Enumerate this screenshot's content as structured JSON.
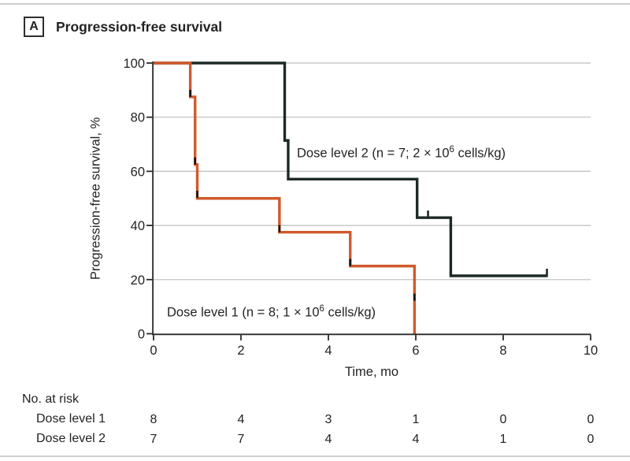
{
  "figure": {
    "panel_label": "A",
    "title": "Progression-free survival",
    "background": "#ffffff",
    "rule_color": "#cfcfcf",
    "text_color": "#232323"
  },
  "chart_data": {
    "type": "line",
    "subtype": "kaplan-meier-step",
    "title": "Progression-free survival",
    "xlabel": "Time, mo",
    "ylabel": "Progression-free survival, %",
    "xlim": [
      0,
      10
    ],
    "ylim": [
      0,
      100
    ],
    "xticks": [
      0,
      2,
      4,
      6,
      8,
      10
    ],
    "yticks": [
      0,
      20,
      40,
      60,
      80,
      100
    ],
    "grid": "horizontal-only",
    "grid_color": "#bdbdbd",
    "axis_color": "#2a2a2a",
    "event_mark_color": "#141414",
    "series": [
      {
        "name": "Dose level 2",
        "annotation": {
          "prefix": "Dose level 2 (n = 7; 2 × 10",
          "sup": "6",
          "suffix": " cells/kg)"
        },
        "color": "#1c2a26",
        "step_points": [
          [
            0,
            100
          ],
          [
            3.0,
            100
          ],
          [
            3.0,
            71.4
          ],
          [
            3.08,
            71.4
          ],
          [
            3.08,
            57.1
          ],
          [
            6.03,
            57.1
          ],
          [
            6.03,
            42.9
          ],
          [
            6.8,
            42.9
          ],
          [
            6.8,
            21.4
          ],
          [
            9.0,
            21.4
          ]
        ],
        "censor_marks": [
          [
            6.28,
            42.9
          ],
          [
            9.0,
            21.4
          ]
        ],
        "event_marks": []
      },
      {
        "name": "Dose level 1",
        "annotation": {
          "prefix": "Dose level 1 (n = 8; 1 × 10",
          "sup": "6",
          "suffix": " cells/kg)"
        },
        "color": "#d05a2b",
        "step_points": [
          [
            0,
            100
          ],
          [
            0.84,
            100
          ],
          [
            0.84,
            87.5
          ],
          [
            0.95,
            87.5
          ],
          [
            0.95,
            62.5
          ],
          [
            1.0,
            62.5
          ],
          [
            1.0,
            50
          ],
          [
            2.88,
            50
          ],
          [
            2.88,
            37.5
          ],
          [
            4.5,
            37.5
          ],
          [
            4.5,
            25
          ],
          [
            5.97,
            25
          ],
          [
            5.97,
            0
          ]
        ],
        "censor_marks": [],
        "event_marks": [
          [
            0.84,
            88.8
          ],
          [
            0.95,
            63.8
          ],
          [
            1.0,
            51.5
          ],
          [
            2.88,
            38.8
          ],
          [
            4.5,
            26.3
          ],
          [
            5.97,
            13.5
          ]
        ]
      }
    ]
  },
  "at_risk": {
    "heading": "No. at risk",
    "rows": [
      {
        "label": "Dose level 1",
        "values": [
          8,
          4,
          3,
          1,
          0,
          0
        ]
      },
      {
        "label": "Dose level 2",
        "values": [
          7,
          7,
          4,
          4,
          1,
          0
        ]
      }
    ]
  }
}
